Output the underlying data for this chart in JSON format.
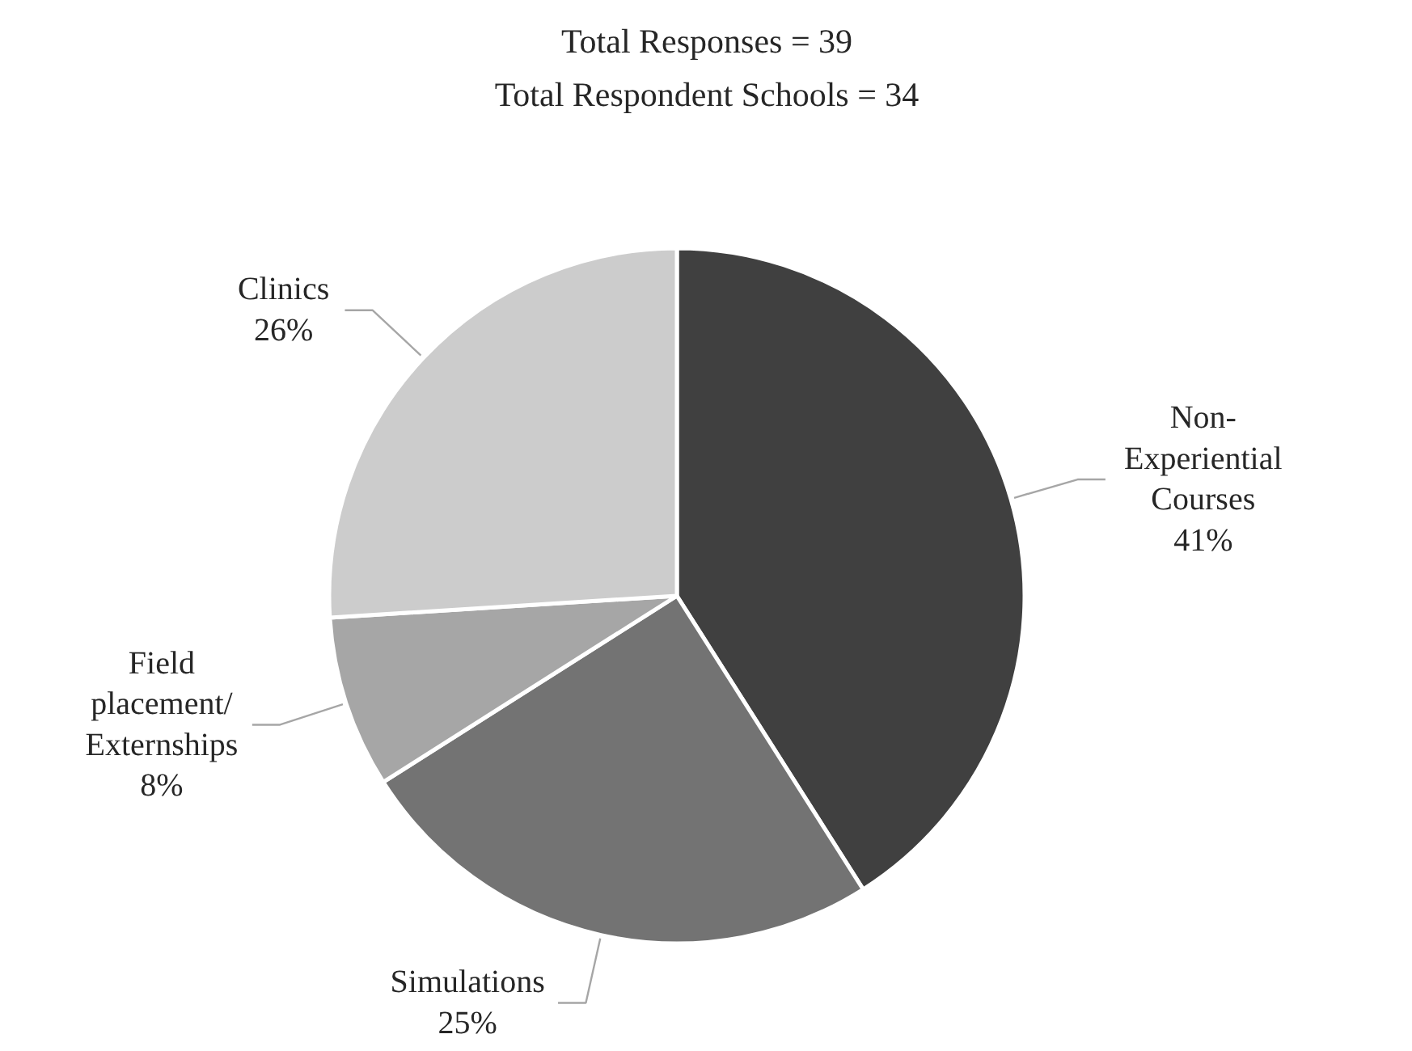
{
  "chart_data": {
    "type": "pie",
    "title": "Total Responses = 39",
    "subtitle": "Total Respondent Schools = 34",
    "categories": [
      "Non-\nExperiential\nCourses",
      "Simulations",
      "Field\nplacement/\nExternships",
      "Clinics"
    ],
    "values": [
      41,
      25,
      8,
      26
    ],
    "value_labels": [
      "41%",
      "25%",
      "8%",
      "26%"
    ],
    "colors": [
      "#404040",
      "#737373",
      "#a6a6a6",
      "#cccccc"
    ]
  }
}
